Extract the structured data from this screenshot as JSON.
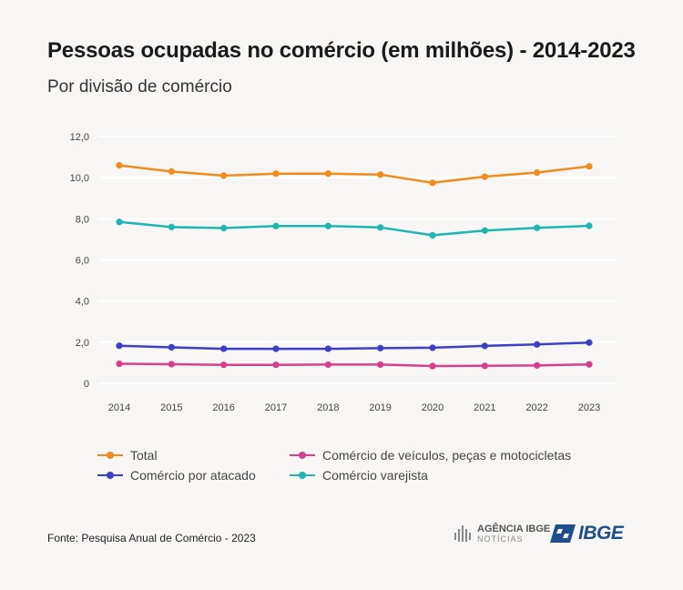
{
  "header": {
    "title": "Pessoas ocupadas no comércio (em milhões) - 2014-2023",
    "subtitle": "Por divisão de comércio"
  },
  "chart_data": {
    "type": "line",
    "title": "Pessoas ocupadas no comércio (em milhões) - 2014-2023",
    "subtitle": "Por divisão de comércio",
    "xlabel": "",
    "ylabel": "",
    "x": [
      "2014",
      "2015",
      "2016",
      "2017",
      "2018",
      "2019",
      "2020",
      "2021",
      "2022",
      "2023"
    ],
    "ylim": [
      0,
      12
    ],
    "yticks": [
      0,
      2,
      4,
      6,
      8,
      10,
      12
    ],
    "ytick_labels": [
      "0",
      "2,0",
      "4,0",
      "6,0",
      "8,0",
      "10,0",
      "12,0"
    ],
    "grid": true,
    "legend_position": "bottom",
    "series": [
      {
        "name": "Total",
        "color": "#f08c1e",
        "values": [
          10.6,
          10.3,
          10.1,
          10.2,
          10.2,
          10.15,
          9.75,
          10.05,
          10.25,
          10.55
        ]
      },
      {
        "name": "Comércio de veículos, peças e motocicletas",
        "color": "#d6408a",
        "values": [
          0.95,
          0.93,
          0.9,
          0.9,
          0.91,
          0.91,
          0.84,
          0.85,
          0.87,
          0.92
        ]
      },
      {
        "name": "Comércio por atacado",
        "color": "#3e3fc4",
        "values": [
          1.83,
          1.75,
          1.68,
          1.68,
          1.68,
          1.71,
          1.73,
          1.82,
          1.89,
          1.98
        ]
      },
      {
        "name": "Comércio varejista",
        "color": "#1fb5b0",
        "values": [
          7.85,
          7.6,
          7.55,
          7.65,
          7.65,
          7.58,
          7.2,
          7.43,
          7.56,
          7.66
        ]
      }
    ]
  },
  "footer": {
    "source": "Fonte: Pesquisa Anual de Comércio - 2023",
    "agencia_line1": "AGÊNCIA IBGE",
    "agencia_line2": "NOTÍCIAS",
    "ibge_logo": "IBGE"
  }
}
